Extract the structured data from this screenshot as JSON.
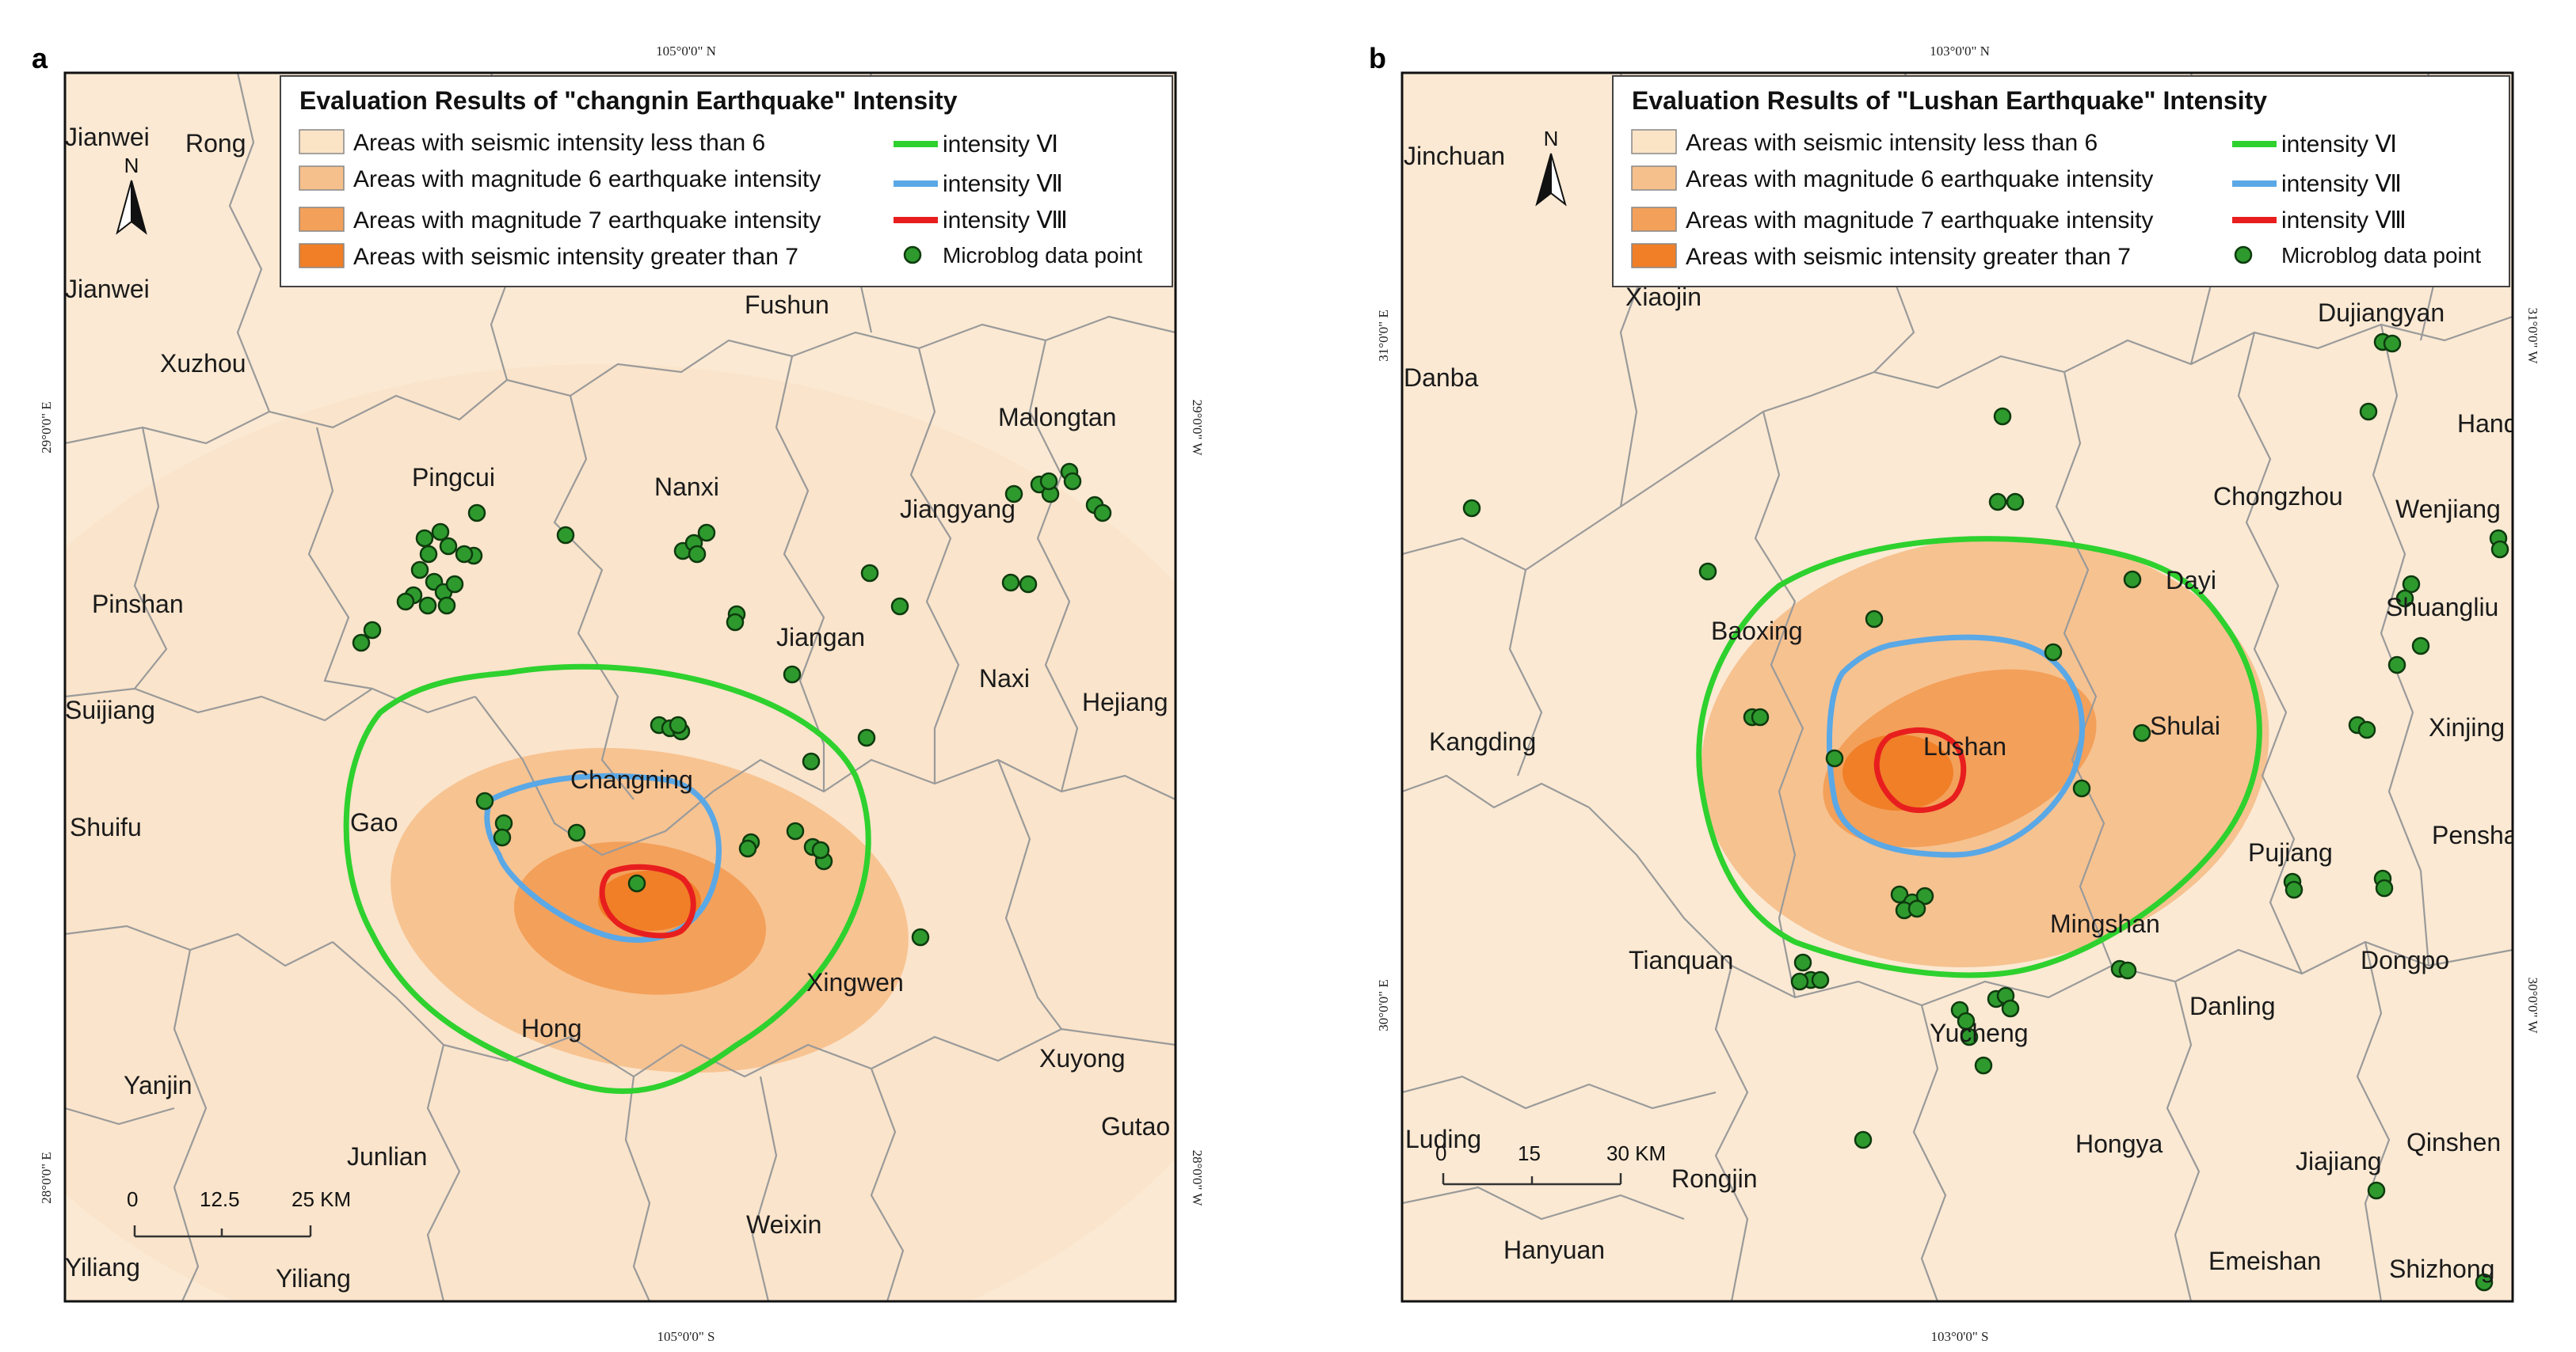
{
  "maps": [
    {
      "id": "a",
      "panel_label": "a",
      "legend": {
        "title": "Evaluation Results of \"changnin Earthquake\" Intensity",
        "areas": [
          {
            "label": "Areas with seismic intensity less than 6",
            "color": "#fbe3c6"
          },
          {
            "label": "Areas with magnitude 6 earthquake intensity",
            "color": "#f6c08c"
          },
          {
            "label": "Areas with magnitude 7 earthquake intensity",
            "color": "#f3a05a"
          },
          {
            "label": "Areas with seismic intensity greater than 7",
            "color": "#f07f28"
          }
        ],
        "lines": [
          {
            "label": "intensity Ⅵ",
            "color": "#2ed12e"
          },
          {
            "label": "intensity Ⅶ",
            "color": "#5aa8e6"
          },
          {
            "label": "intensity Ⅷ",
            "color": "#e81e1e"
          }
        ],
        "points": {
          "label": "Microblog data point",
          "color": "#2e9a2e"
        }
      },
      "coords": {
        "top": "105°0'0\" N",
        "bottom": "105°0'0\" S",
        "left_upper": "29°0'0\" E",
        "left_lower": "28°0'0\" E",
        "right_upper": "29°0'0\" W",
        "right_lower": "28°0'0\" W"
      },
      "north_label": "N",
      "scale": {
        "zero": "0",
        "mid": "12.5",
        "end": "25 KM"
      },
      "places": [
        "Jianwei",
        "Rong",
        "Jianwei",
        "Xuzhou",
        "Fushun",
        "Malongtan",
        "Pingcui",
        "Nanxi",
        "Jiangyang",
        "Pinshan",
        "Jiangan",
        "Naxi",
        "Suijiang",
        "Hejiang",
        "Changning",
        "Shuifu",
        "Gao",
        "Xingwen",
        "Hong",
        "Xuyong",
        "Yanjin",
        "Gutao",
        "Junlian",
        "Weixin",
        "Yiliang",
        "Yiliang"
      ]
    },
    {
      "id": "b",
      "panel_label": "b",
      "legend": {
        "title": "Evaluation Results of \"Lushan Earthquake\" Intensity",
        "areas": [
          {
            "label": "Areas with seismic intensity less than 6",
            "color": "#fbe3c6"
          },
          {
            "label": "Areas with magnitude 6 earthquake intensity",
            "color": "#f6c08c"
          },
          {
            "label": "Areas with magnitude 7 earthquake intensity",
            "color": "#f3a05a"
          },
          {
            "label": "Areas with seismic intensity greater than 7",
            "color": "#f07f28"
          }
        ],
        "lines": [
          {
            "label": "intensity Ⅵ",
            "color": "#2ed12e"
          },
          {
            "label": "intensity Ⅶ",
            "color": "#5aa8e6"
          },
          {
            "label": "intensity Ⅷ",
            "color": "#e81e1e"
          }
        ],
        "points": {
          "label": "Microblog data point",
          "color": "#2e9a2e"
        }
      },
      "coords": {
        "top": "103°0'0\" N",
        "bottom": "103°0'0\" S",
        "left_upper": "31°0'0\" E",
        "left_lower": "30°0'0\" E",
        "right_upper": "31°0'0\" W",
        "right_lower": "30°0'0\" W"
      },
      "north_label": "N",
      "scale": {
        "zero": "0",
        "mid": "15",
        "end": "30 KM"
      },
      "places": [
        "Jinchuan",
        "Xiaojin",
        "Dujiangyan",
        "Danba",
        "Handu",
        "Chongzhou",
        "Wenjiang",
        "Dayi",
        "Shuangliu",
        "Baoxing",
        "Kangding",
        "Shulai",
        "Xinjing",
        "Lushan",
        "Penshan",
        "Pujiang",
        "Mingshan",
        "Tianquan",
        "Dongpo",
        "Danling",
        "Yucheng",
        "Luding",
        "Qinshen",
        "Hongya",
        "Rongjin",
        "Jiajiang",
        "Hanyuan",
        "Emeishan",
        "Shizhong"
      ]
    }
  ]
}
